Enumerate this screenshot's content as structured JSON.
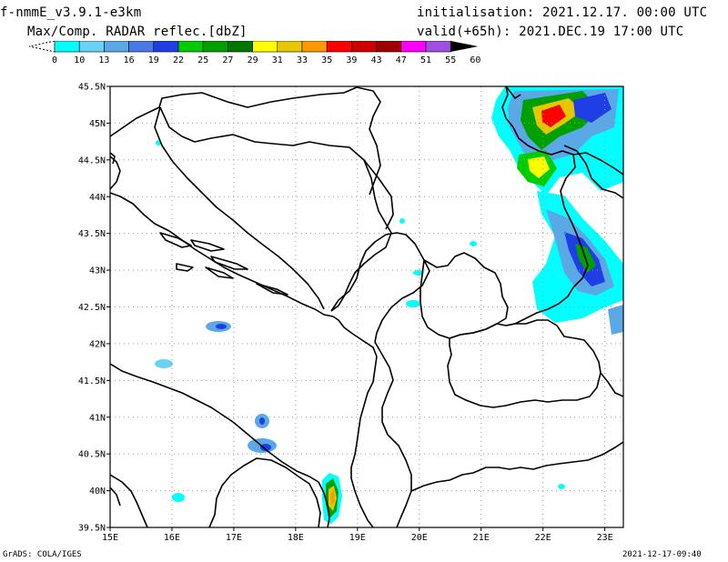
{
  "header": {
    "model_name": "f-nmmE_v3.9.1-e3km",
    "product": "Max/Comp. RADAR reflec.[dbZ]",
    "initialisation": "initialisation: 2021.12.17. 00:00 UTC",
    "valid": "valid(+65h): 2021.DEC.19 17:00 UTC"
  },
  "colorbar": {
    "ticks": [
      "0",
      "10",
      "13",
      "16",
      "19",
      "22",
      "25",
      "27",
      "29",
      "31",
      "33",
      "35",
      "39",
      "43",
      "47",
      "51",
      "55",
      "60"
    ],
    "colors": [
      "#00ffff",
      "#6ad3f5",
      "#5aa9e6",
      "#4a78e6",
      "#1f3ee6",
      "#00cc00",
      "#00a000",
      "#007800",
      "#ffff00",
      "#e6c800",
      "#ff9900",
      "#ff0000",
      "#d00000",
      "#a00000",
      "#ff00ff",
      "#a050e0"
    ]
  },
  "map": {
    "lat_labels": [
      "45.5N",
      "45N",
      "44.5N",
      "44N",
      "43.5N",
      "43N",
      "42.5N",
      "42N",
      "41.5N",
      "41N",
      "40.5N",
      "40N",
      "39.5N"
    ],
    "lon_labels": [
      "15E",
      "16E",
      "17E",
      "18E",
      "19E",
      "20E",
      "21E",
      "22E",
      "23E"
    ],
    "lat_range": [
      39.5,
      45.5
    ],
    "lon_range": [
      15,
      23.3
    ],
    "grid": "dotted"
  },
  "footer": {
    "left": "GrADS: COLA/IGES",
    "right": "2021-12-17-09:40"
  }
}
